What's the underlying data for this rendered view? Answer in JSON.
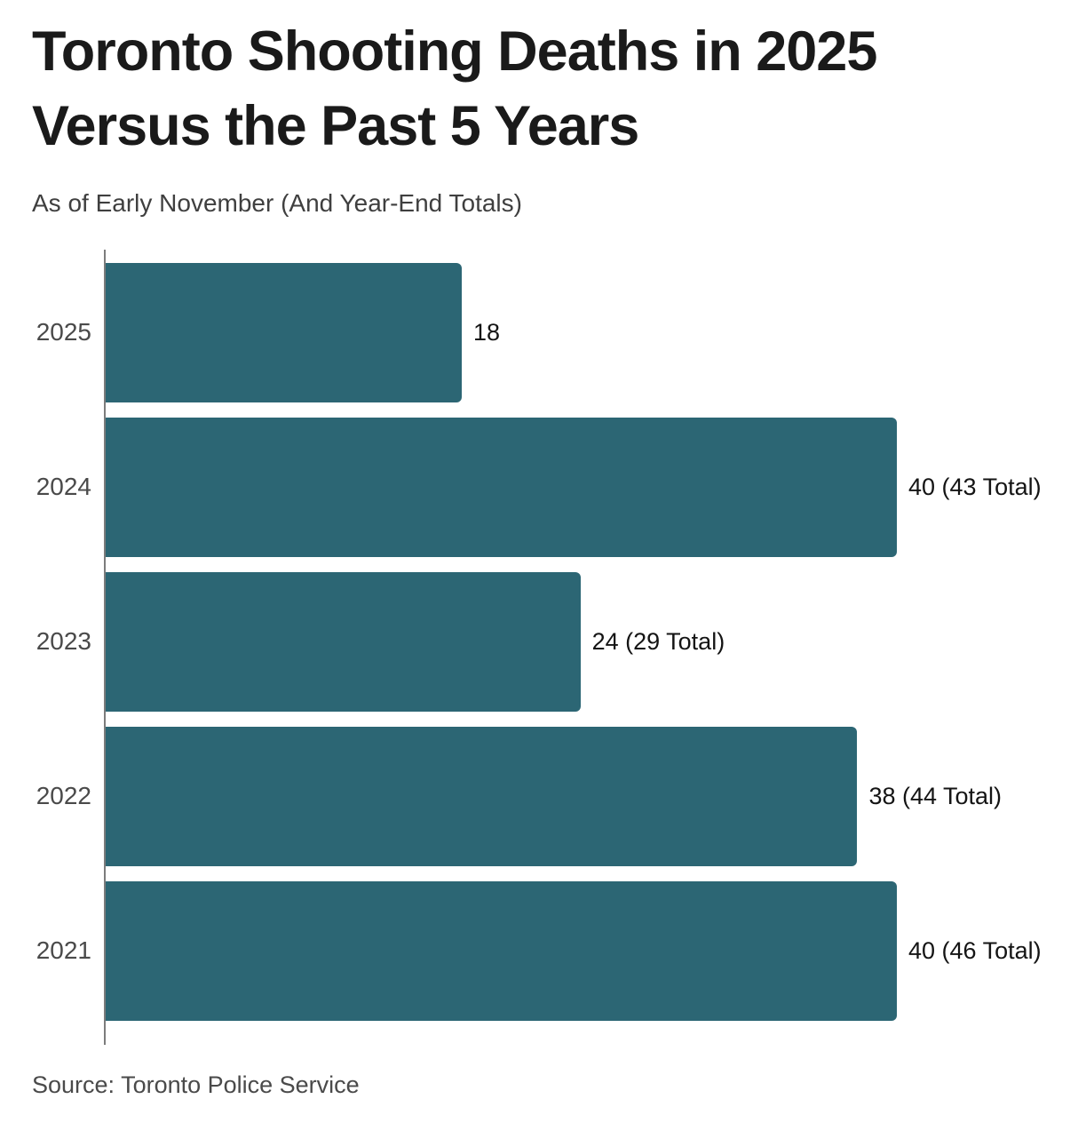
{
  "header": {
    "title": "Toronto Shooting Deaths in 2025\nVersus the Past 5 Years",
    "subtitle": "As of Early November (And Year-End Totals)"
  },
  "chart_data": {
    "type": "bar",
    "orientation": "horizontal",
    "title": "Toronto Shooting Deaths in 2025 Versus the Past 5 Years",
    "subtitle": "As of Early November (And Year-End Totals)",
    "categories": [
      "2025",
      "2024",
      "2023",
      "2022",
      "2021"
    ],
    "values": [
      18,
      40,
      24,
      38,
      40
    ],
    "year_end_totals": [
      null,
      43,
      29,
      44,
      46
    ],
    "value_labels": [
      "18",
      "40 (43 Total)",
      "24 (29 Total)",
      "38 (44 Total)",
      "40 (46 Total)"
    ],
    "xlim": [
      0,
      40
    ],
    "grid": false,
    "legend": false,
    "bar_color": "#2C6674",
    "axis_color": "#7C7C7C",
    "title_color": "#1A1A1A",
    "label_color": "#4A4A4A",
    "value_color": "#141414"
  },
  "footer": {
    "source": "Source: Toronto Police Service"
  }
}
